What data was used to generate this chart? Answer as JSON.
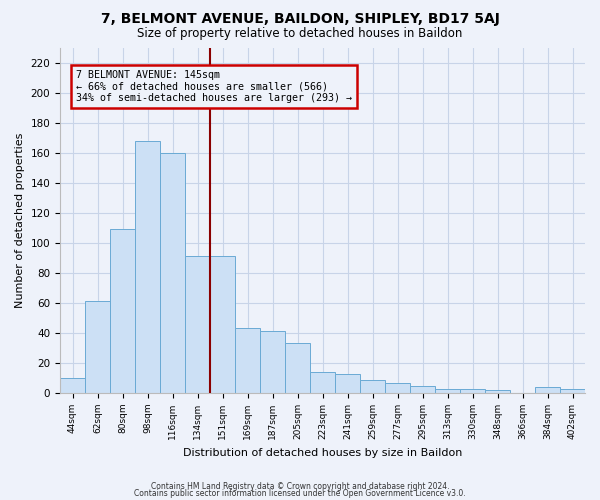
{
  "title": "7, BELMONT AVENUE, BAILDON, SHIPLEY, BD17 5AJ",
  "subtitle": "Size of property relative to detached houses in Baildon",
  "xlabel": "Distribution of detached houses by size in Baildon",
  "ylabel": "Number of detached properties",
  "bar_color": "#cce0f5",
  "bar_edge_color": "#6aaad4",
  "categories": [
    "44sqm",
    "62sqm",
    "80sqm",
    "98sqm",
    "116sqm",
    "134sqm",
    "151sqm",
    "169sqm",
    "187sqm",
    "205sqm",
    "223sqm",
    "241sqm",
    "259sqm",
    "277sqm",
    "295sqm",
    "313sqm",
    "330sqm",
    "348sqm",
    "366sqm",
    "384sqm",
    "402sqm"
  ],
  "values": [
    10,
    61,
    109,
    168,
    160,
    91,
    91,
    43,
    41,
    33,
    14,
    13,
    9,
    7,
    5,
    3,
    3,
    2,
    0,
    4,
    3
  ],
  "ylim": [
    0,
    230
  ],
  "yticks": [
    0,
    20,
    40,
    60,
    80,
    100,
    120,
    140,
    160,
    180,
    200,
    220
  ],
  "marker_bar_index": 6,
  "marker_label": "7 BELMONT AVENUE: 145sqm",
  "annotation_line1": "← 66% of detached houses are smaller (566)",
  "annotation_line2": "34% of semi-detached houses are larger (293) →",
  "grid_color": "#c8d4e8",
  "background_color": "#eef2fa",
  "redline_color": "#8b0000",
  "box_edge_color": "#cc0000",
  "footer1": "Contains HM Land Registry data © Crown copyright and database right 2024.",
  "footer2": "Contains public sector information licensed under the Open Government Licence v3.0."
}
